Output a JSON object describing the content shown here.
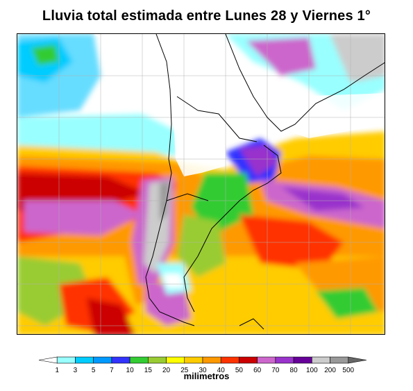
{
  "title": "Lluvia total estimada entre Lunes 28 y Viernes 1°",
  "legend": {
    "labels": [
      "1",
      "3",
      "5",
      "7",
      "10",
      "15",
      "20",
      "25",
      "30",
      "40",
      "50",
      "60",
      "70",
      "80",
      "100",
      "200",
      "500"
    ],
    "colors": [
      "#ffffff",
      "#99ffff",
      "#00ccff",
      "#0099ff",
      "#3333ff",
      "#33cc33",
      "#99cc33",
      "#ffff00",
      "#ffcc00",
      "#ff9900",
      "#ff3300",
      "#cc0000",
      "#cc66cc",
      "#9933cc",
      "#660099",
      "#cccccc",
      "#999999",
      "#666666"
    ],
    "units": "milimetros"
  },
  "map": {
    "region": "South America (southern cone) and adjacent oceans"
  }
}
